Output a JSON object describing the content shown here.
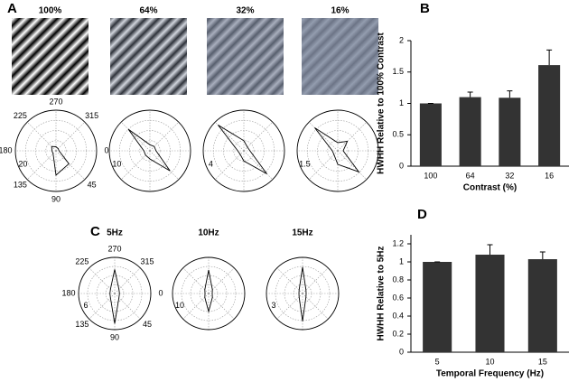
{
  "chart_data": [
    {
      "type": "grating",
      "panel": "A",
      "title": "100%",
      "contrast": 100
    },
    {
      "type": "grating",
      "title": "64%",
      "contrast": 64
    },
    {
      "type": "grating",
      "title": "32%",
      "contrast": 32
    },
    {
      "type": "grating",
      "title": "16%",
      "contrast": 16
    },
    {
      "type": "polar",
      "theta": [
        0,
        45,
        90,
        135,
        180,
        225,
        270,
        315
      ],
      "values": [
        1.5,
        9,
        12,
        2,
        2,
        3,
        2,
        1.5
      ],
      "rlim": [
        0,
        20
      ],
      "rticks": [
        20
      ],
      "thetaticks": [
        270,
        315,
        0,
        45,
        90,
        135,
        180,
        225
      ]
    },
    {
      "type": "polar",
      "theta": [
        0,
        45,
        90,
        135,
        180,
        225,
        270,
        315
      ],
      "values": [
        1.5,
        7,
        2,
        1.5,
        1.5,
        7.5,
        1.5,
        1.5
      ],
      "rlim": [
        0,
        10
      ],
      "rticks": [
        10
      ]
    },
    {
      "type": "polar",
      "theta": [
        0,
        45,
        90,
        135,
        180,
        225,
        270,
        315
      ],
      "values": [
        0.6,
        3.2,
        1,
        0.5,
        0.6,
        3.6,
        1,
        0.5
      ],
      "rlim": [
        0,
        4
      ],
      "rticks": [
        4
      ]
    },
    {
      "type": "polar",
      "theta": [
        0,
        45,
        90,
        135,
        180,
        225,
        270,
        315
      ],
      "values": [
        0.2,
        1.1,
        0.5,
        0.2,
        0.2,
        1.2,
        0.3,
        0.5
      ],
      "rlim": [
        0,
        1.5
      ],
      "rticks": [
        1.5
      ]
    },
    {
      "type": "bar",
      "panel": "B",
      "categories": [
        "100",
        "64",
        "32",
        "16"
      ],
      "values": [
        1,
        1.1,
        1.09,
        1.61
      ],
      "errors": [
        0,
        0.08,
        0.11,
        0.24
      ],
      "color": "#333333",
      "ylim": [
        0,
        2
      ],
      "yticks": [
        0,
        0.5,
        1,
        1.5,
        2
      ],
      "ylabel": "HWHH Relative to 100% Contrast",
      "xlabel": "Contrast (%)"
    },
    {
      "type": "polar",
      "panel": "C",
      "title": "5Hz",
      "theta": [
        0,
        45,
        90,
        135,
        180,
        225,
        270,
        315
      ],
      "values": [
        0.8,
        1,
        5,
        1,
        0.8,
        1,
        4,
        1
      ],
      "rlim": [
        0,
        6
      ],
      "rticks": [
        6
      ],
      "thetaticks": [
        270,
        315,
        0,
        45,
        90,
        135,
        180,
        225
      ]
    },
    {
      "type": "polar",
      "title": "10Hz",
      "theta": [
        0,
        45,
        90,
        135,
        180,
        225,
        270,
        315
      ],
      "values": [
        1,
        1.5,
        5,
        1.5,
        1,
        1.5,
        6.5,
        1.5
      ],
      "rlim": [
        0,
        10
      ],
      "rticks": [
        10
      ]
    },
    {
      "type": "polar",
      "title": "15Hz",
      "theta": [
        0,
        45,
        90,
        135,
        180,
        225,
        270,
        315
      ],
      "values": [
        0.3,
        0.4,
        2.3,
        0.4,
        0.3,
        0.4,
        2.2,
        0.4
      ],
      "rlim": [
        0,
        3
      ],
      "rticks": [
        3
      ]
    },
    {
      "type": "bar",
      "panel": "D",
      "categories": [
        "5",
        "10",
        "15"
      ],
      "values": [
        1,
        1.08,
        1.03
      ],
      "errors": [
        0,
        0.11,
        0.08
      ],
      "color": "#333333",
      "ylim": [
        0,
        1.3
      ],
      "yticks": [
        0,
        0.2,
        0.4,
        0.6,
        0.8,
        1,
        1.2
      ],
      "ylabel": "HWHH Relative to 5Hz",
      "xlabel": "Temporal Frequency (Hz)"
    }
  ]
}
